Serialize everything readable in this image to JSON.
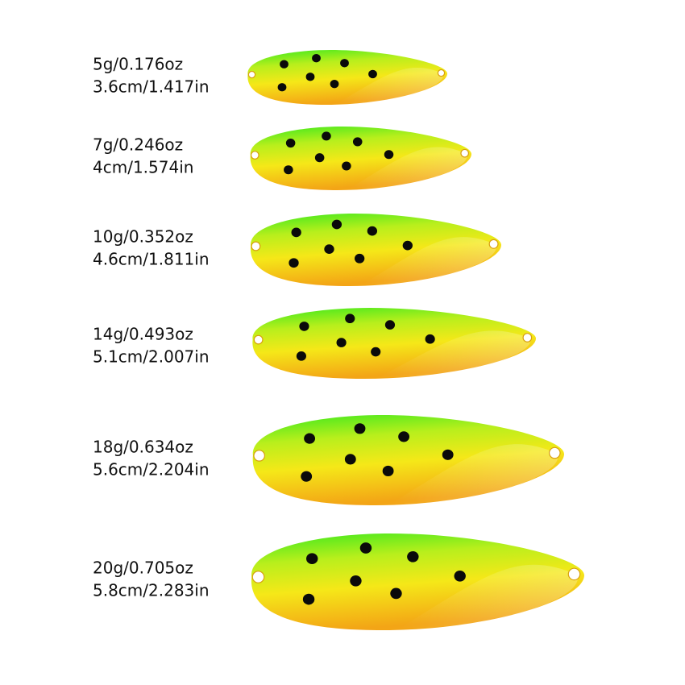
{
  "items": [
    {
      "weight": "5g/0.176oz",
      "length": "3.6cm/1.417in"
    },
    {
      "weight": "7g/0.246oz",
      "length": "4cm/1.574in"
    },
    {
      "weight": "10g/0.352oz",
      "length": "4.6cm/1.811in"
    },
    {
      "weight": "14g/0.493oz",
      "length": "5.1cm/2.007in"
    },
    {
      "weight": "18g/0.634oz",
      "length": "5.6cm/2.204in"
    },
    {
      "weight": "20g/0.705oz",
      "length": "5.8cm/2.283in"
    }
  ]
}
